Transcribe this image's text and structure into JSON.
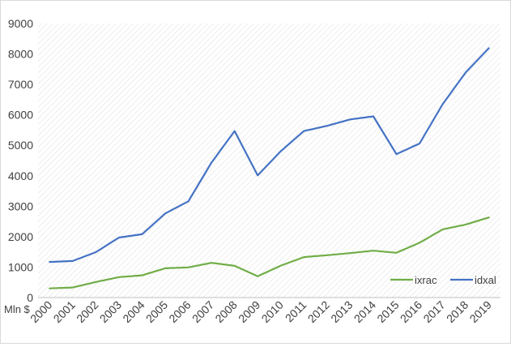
{
  "chart_data": {
    "type": "line",
    "title": "",
    "xlabel": "",
    "ylabel": "",
    "y_unit_label": "Mln $",
    "categories": [
      "2000",
      "2001",
      "2002",
      "2003",
      "2004",
      "2005",
      "2006",
      "2007",
      "2008",
      "2009",
      "2010",
      "2011",
      "2012",
      "2013",
      "2014",
      "2015",
      "2016",
      "2017",
      "2018",
      "2019"
    ],
    "ylim": [
      0,
      9000
    ],
    "yticks": [
      0,
      1000,
      2000,
      3000,
      4000,
      5000,
      6000,
      7000,
      8000,
      9000
    ],
    "grid": false,
    "plot_background": "diagonal-hatch",
    "legend_position": "bottom-right",
    "series": [
      {
        "name": "ixrac",
        "color": "#70ad47",
        "values": [
          300,
          330,
          510,
          670,
          730,
          960,
          990,
          1140,
          1040,
          700,
          1050,
          1330,
          1390,
          1460,
          1540,
          1470,
          1800,
          2240,
          2400,
          2630
        ]
      },
      {
        "name": "idxal",
        "color": "#4472c4",
        "values": [
          1170,
          1200,
          1490,
          1970,
          2080,
          2760,
          3160,
          4430,
          5470,
          4010,
          4810,
          5470,
          5640,
          5850,
          5950,
          4710,
          5060,
          6350,
          7400,
          8190
        ]
      }
    ]
  }
}
